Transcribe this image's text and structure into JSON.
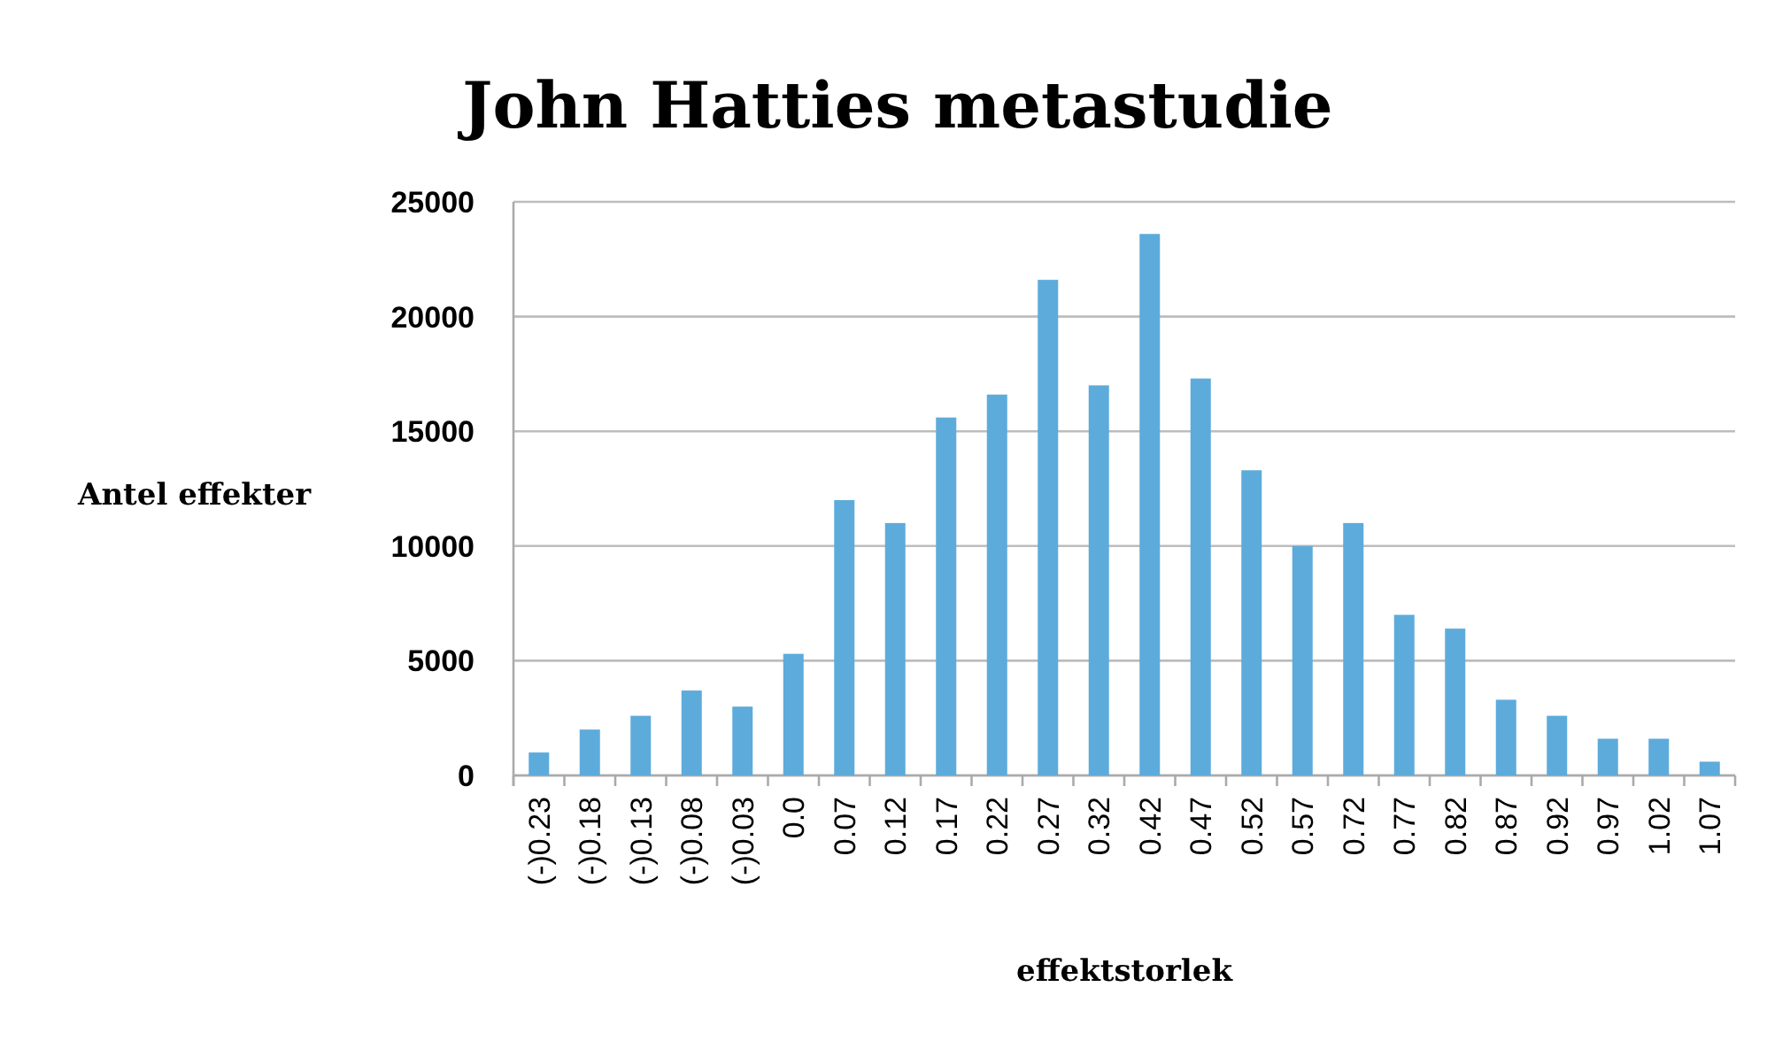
{
  "chart_data": {
    "type": "bar",
    "title": "John Hatties metastudie",
    "xlabel": "effektstorlek",
    "ylabel": "Antel effekter",
    "categories": [
      "(-)0.23",
      "(-)0.18",
      "(-)0.13",
      "(-)0.08",
      "(-)0.03",
      "0.0",
      "0.07",
      "0.12",
      "0.17",
      "0.22",
      "0.27",
      "0.32",
      "0.42",
      "0.47",
      "0.52",
      "0.57",
      "0.72",
      "0.77",
      "0.82",
      "0.87",
      "0.92",
      "0.97",
      "1.02",
      "1.07"
    ],
    "values": [
      1000,
      2000,
      2600,
      3700,
      3000,
      5300,
      12000,
      11000,
      15600,
      16600,
      21600,
      17000,
      23600,
      17300,
      13300,
      10000,
      11000,
      7000,
      6400,
      3300,
      2600,
      1600,
      1600,
      600
    ],
    "color": "#5dabdb",
    "ylim": [
      0,
      25000
    ],
    "yticks": [
      0,
      5000,
      10000,
      15000,
      20000,
      25000
    ],
    "grid": "y"
  }
}
